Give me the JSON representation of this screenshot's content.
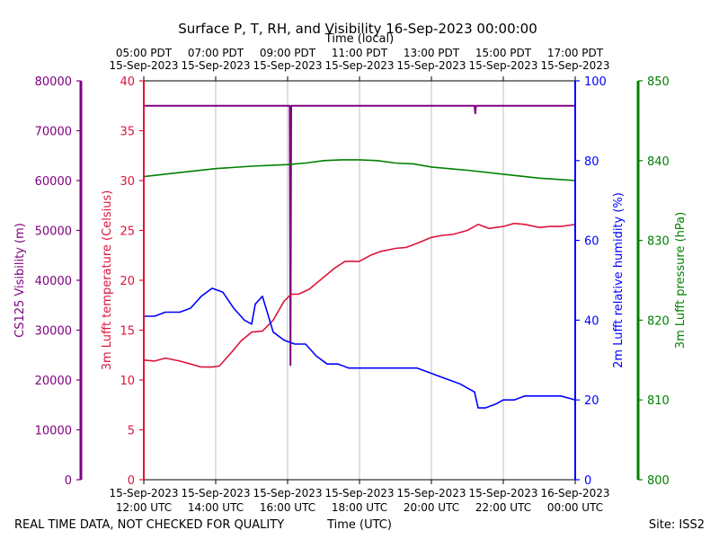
{
  "chart_data": {
    "type": "line",
    "title": "Surface P, T, RH, and Visibility 16-Sep-2023 00:00:00",
    "xlabel": "Time (UTC)",
    "x2label": "Time (local)",
    "x_hours_range": [
      12,
      24
    ],
    "x_ticks_utc": [
      {
        "hour": 12,
        "date": "15-Sep-2023",
        "time": "12:00 UTC"
      },
      {
        "hour": 14,
        "date": "15-Sep-2023",
        "time": "14:00 UTC"
      },
      {
        "hour": 16,
        "date": "15-Sep-2023",
        "time": "16:00 UTC"
      },
      {
        "hour": 18,
        "date": "15-Sep-2023",
        "time": "18:00 UTC"
      },
      {
        "hour": 20,
        "date": "15-Sep-2023",
        "time": "20:00 UTC"
      },
      {
        "hour": 22,
        "date": "15-Sep-2023",
        "time": "22:00 UTC"
      },
      {
        "hour": 24,
        "date": "16-Sep-2023",
        "time": "00:00 UTC"
      }
    ],
    "x_ticks_local": [
      {
        "hour": 12,
        "time": "05:00 PDT",
        "date": "15-Sep-2023"
      },
      {
        "hour": 14,
        "time": "07:00 PDT",
        "date": "15-Sep-2023"
      },
      {
        "hour": 16,
        "time": "09:00 PDT",
        "date": "15-Sep-2023"
      },
      {
        "hour": 18,
        "time": "11:00 PDT",
        "date": "15-Sep-2023"
      },
      {
        "hour": 20,
        "time": "13:00 PDT",
        "date": "15-Sep-2023"
      },
      {
        "hour": 22,
        "time": "15:00 PDT",
        "date": "15-Sep-2023"
      },
      {
        "hour": 24,
        "time": "17:00 PDT",
        "date": "15-Sep-2023"
      }
    ],
    "axes": {
      "visibility": {
        "label": "CS125 Visibility (m)",
        "range": [
          0,
          80000
        ],
        "ticks": [
          "0",
          "10000",
          "20000",
          "30000",
          "40000",
          "50000",
          "60000",
          "70000",
          "80000"
        ],
        "color": "#800080"
      },
      "temperature": {
        "label": "3m Lufft temperature (Celsius)",
        "range": [
          0,
          40
        ],
        "ticks": [
          "0",
          "5",
          "10",
          "15",
          "20",
          "25",
          "30",
          "35",
          "40"
        ],
        "color": "#dc143c"
      },
      "humidity": {
        "label": "2m Lufft relative humidity (%)",
        "range": [
          0,
          100
        ],
        "ticks": [
          "0",
          "20",
          "40",
          "60",
          "80",
          "100"
        ],
        "color": "#0000ff"
      },
      "pressure": {
        "label": "3m Lufft pressure (hPa)",
        "range": [
          800,
          850
        ],
        "ticks": [
          "800",
          "810",
          "820",
          "830",
          "840",
          "850"
        ],
        "color": "#008000"
      }
    },
    "series": [
      {
        "name": "CS125 Visibility",
        "axis": "visibility",
        "color": "#800080",
        "x": [
          12.0,
          16.06,
          16.08,
          16.1,
          16.12,
          16.14,
          21.2,
          21.22,
          21.24,
          24.0
        ],
        "y": [
          75000,
          75000,
          23000,
          75000,
          75000,
          75000,
          75000,
          73500,
          75000,
          75000
        ]
      },
      {
        "name": "3m Lufft temperature",
        "axis": "temperature",
        "color": "#dc143c",
        "x": [
          12.0,
          12.3,
          12.6,
          13.0,
          13.3,
          13.6,
          13.9,
          14.1,
          14.4,
          14.7,
          15.0,
          15.3,
          15.6,
          15.9,
          16.1,
          16.3,
          16.6,
          17.0,
          17.3,
          17.6,
          18.0,
          18.3,
          18.6,
          19.0,
          19.3,
          19.6,
          20.0,
          20.3,
          20.6,
          20.9,
          21.0,
          21.3,
          21.6,
          22.0,
          22.3,
          22.6,
          23.0,
          23.3,
          23.6,
          24.0
        ],
        "y": [
          12.0,
          11.9,
          12.2,
          11.9,
          11.6,
          11.3,
          11.3,
          11.4,
          12.6,
          13.9,
          14.8,
          14.9,
          16.0,
          17.9,
          18.6,
          18.6,
          19.1,
          20.3,
          21.2,
          21.9,
          21.9,
          22.5,
          22.9,
          23.2,
          23.3,
          23.7,
          24.3,
          24.5,
          24.6,
          24.9,
          25.0,
          25.6,
          25.2,
          25.4,
          25.7,
          25.6,
          25.3,
          25.4,
          25.4,
          25.6
        ]
      },
      {
        "name": "2m Lufft relative humidity",
        "axis": "humidity",
        "color": "#0000ff",
        "x": [
          12.0,
          12.3,
          12.6,
          13.0,
          13.3,
          13.6,
          13.9,
          14.2,
          14.5,
          14.8,
          15.0,
          15.1,
          15.3,
          15.4,
          15.6,
          15.9,
          16.2,
          16.5,
          16.8,
          17.1,
          17.4,
          17.7,
          18.0,
          18.3,
          18.6,
          19.0,
          19.3,
          19.6,
          19.9,
          20.2,
          20.5,
          20.8,
          21.0,
          21.2,
          21.3,
          21.5,
          21.8,
          22.0,
          22.3,
          22.6,
          23.0,
          23.3,
          23.6,
          24.0
        ],
        "y": [
          41.0,
          41.0,
          42.0,
          42.0,
          43.0,
          46.0,
          48.0,
          47.0,
          43.0,
          40.0,
          39.0,
          44.0,
          46.0,
          43.0,
          37.0,
          35.0,
          34.0,
          34.0,
          31.0,
          29.0,
          29.0,
          28.0,
          28.0,
          28.0,
          28.0,
          28.0,
          28.0,
          28.0,
          27.0,
          26.0,
          25.0,
          24.0,
          23.0,
          22.0,
          18.0,
          18.0,
          19.0,
          20.0,
          20.0,
          21.0,
          21.0,
          21.0,
          21.0,
          20.0
        ]
      },
      {
        "name": "3m Lufft pressure",
        "axis": "pressure",
        "color": "#008000",
        "x": [
          12.0,
          13.0,
          14.0,
          15.0,
          16.0,
          16.5,
          17.0,
          17.5,
          18.0,
          18.5,
          19.0,
          19.5,
          20.0,
          21.0,
          22.0,
          23.0,
          24.0
        ],
        "y": [
          838.0,
          838.5,
          839.0,
          839.3,
          839.5,
          839.7,
          840.0,
          840.1,
          840.1,
          840.0,
          839.7,
          839.6,
          839.2,
          838.8,
          838.3,
          837.8,
          837.5
        ]
      }
    ]
  },
  "footer": {
    "disclaimer": "REAL TIME DATA, NOT CHECKED FOR QUALITY",
    "site": "Site: ISS2"
  }
}
